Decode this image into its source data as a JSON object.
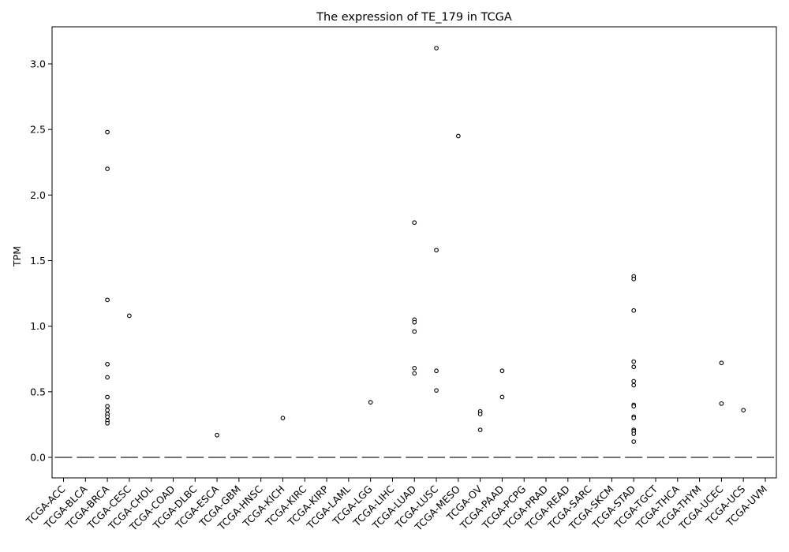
{
  "chart_data": {
    "type": "box",
    "title": "The expression of TE_179 in TCGA",
    "xlabel": "",
    "ylabel": "TPM",
    "ylim": [
      -0.15,
      3.28
    ],
    "yticks": [
      "0.0",
      "0.5",
      "1.0",
      "1.5",
      "2.0",
      "2.5",
      "3.0"
    ],
    "grid": false,
    "categories": [
      "TCGA-ACC",
      "TCGA-BLCA",
      "TCGA-BRCA",
      "TCGA-CESC",
      "TCGA-CHOL",
      "TCGA-COAD",
      "TCGA-DLBC",
      "TCGA-ESCA",
      "TCGA-GBM",
      "TCGA-HNSC",
      "TCGA-KICH",
      "TCGA-KIRC",
      "TCGA-KIRP",
      "TCGA-LAML",
      "TCGA-LGG",
      "TCGA-LIHC",
      "TCGA-LUAD",
      "TCGA-LUSC",
      "TCGA-MESO",
      "TCGA-OV",
      "TCGA-PAAD",
      "TCGA-PCPG",
      "TCGA-PRAD",
      "TCGA-READ",
      "TCGA-SARC",
      "TCGA-SKCM",
      "TCGA-STAD",
      "TCGA-TGCT",
      "TCGA-THCA",
      "TCGA-THYM",
      "TCGA-UCEC",
      "TCGA-UCS",
      "TCGA-UVM"
    ],
    "medians": [
      0,
      0,
      0,
      0,
      0,
      0,
      0,
      0,
      0,
      0,
      0,
      0,
      0,
      0,
      0,
      0,
      0,
      0,
      0,
      0,
      0,
      0,
      0,
      0,
      0,
      0,
      0,
      0,
      0,
      0,
      0,
      0,
      0
    ],
    "outliers": [
      [],
      [],
      [
        2.48,
        2.2,
        1.2,
        0.71,
        0.61,
        0.46,
        0.39,
        0.36,
        0.33,
        0.31,
        0.28,
        0.26
      ],
      [
        1.08
      ],
      [],
      [],
      [],
      [
        0.17
      ],
      [],
      [],
      [
        0.3
      ],
      [],
      [],
      [],
      [
        0.42
      ],
      [],
      [
        1.79,
        1.05,
        1.03,
        0.96,
        0.68,
        0.64
      ],
      [
        3.12,
        1.58,
        0.66,
        0.51
      ],
      [
        2.45
      ],
      [
        0.35,
        0.33,
        0.21
      ],
      [
        0.66,
        0.46
      ],
      [],
      [],
      [],
      [],
      [],
      [
        1.38,
        1.36,
        1.12,
        0.73,
        0.69,
        0.58,
        0.55,
        0.4,
        0.39,
        0.31,
        0.3,
        0.21,
        0.2,
        0.18,
        0.12
      ],
      [],
      [],
      [],
      [
        0.72,
        0.41
      ],
      [
        0.36
      ],
      []
    ],
    "colors": {
      "axis": "#000000",
      "median": "#444444",
      "marker_edge": "#000000",
      "marker_face": "#ffffff"
    }
  }
}
